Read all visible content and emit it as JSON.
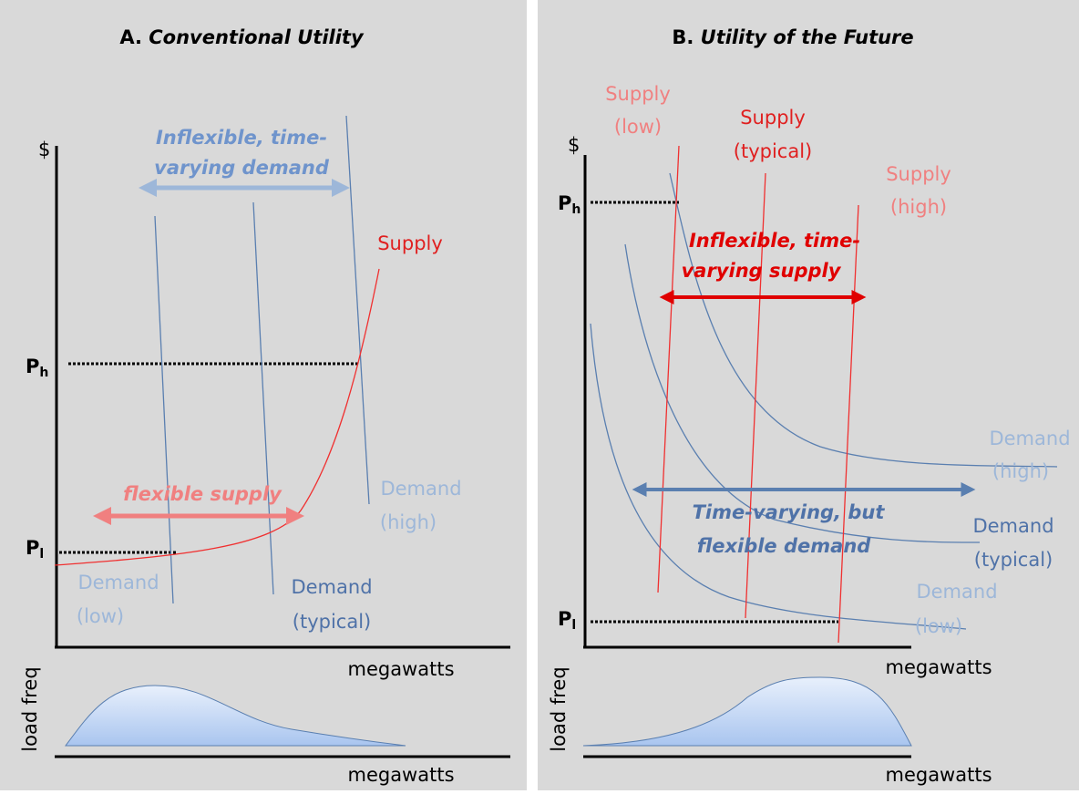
{
  "panel_a": {
    "label": "A.",
    "title": "Conventional Utility",
    "price_symbol": "$",
    "price_high": {
      "main": "P",
      "sub": "h"
    },
    "price_low": {
      "main": "P",
      "sub": "l"
    },
    "demand_arrow": {
      "lines": [
        "Inflexible, time-",
        "varying demand"
      ]
    },
    "supply_label": "Supply",
    "supply_arrow": "flexible supply",
    "demand_high": [
      "Demand",
      "(high)"
    ],
    "demand_low": [
      "Demand",
      "(low)"
    ],
    "demand_typical": [
      "Demand",
      "(typical)"
    ],
    "x_label": "megawatts",
    "dist_y_label": "load freq",
    "dist_x_label": "megawatts"
  },
  "panel_b": {
    "label": "B.",
    "title": "Utility of the Future",
    "price_symbol": "$",
    "price_high": {
      "main": "P",
      "sub": "h"
    },
    "price_low": {
      "main": "P",
      "sub": "l"
    },
    "supply_low": [
      "Supply",
      "(low)"
    ],
    "supply_typical": [
      "Supply",
      "(typical)"
    ],
    "supply_high": [
      "Supply",
      "(high)"
    ],
    "supply_arrow": {
      "lines": [
        "Inflexible, time-",
        "varying supply"
      ]
    },
    "demand_arrow": {
      "lines": [
        "Time-varying, but",
        "flexible demand"
      ]
    },
    "demand_high": [
      "Demand",
      "(high)"
    ],
    "demand_typical": [
      "Demand",
      "(typical)"
    ],
    "demand_low": [
      "Demand",
      "(low)"
    ],
    "x_label": "megawatts",
    "dist_y_label": "load freq",
    "dist_x_label": "megawatts"
  }
}
